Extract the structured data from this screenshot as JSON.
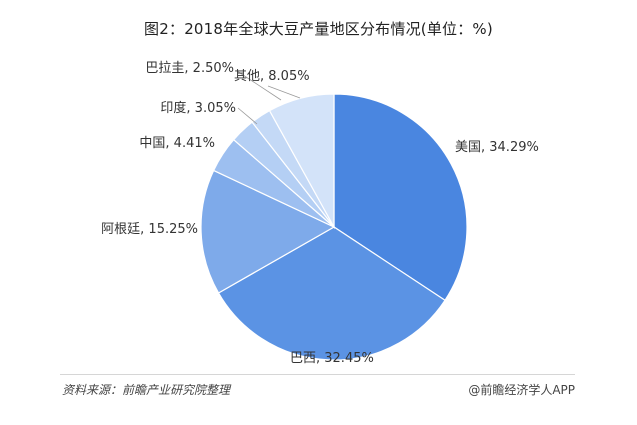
{
  "chart_data": {
    "type": "pie",
    "title": "图2：2018年全球大豆产量地区分布情况(单位：%)",
    "slices": [
      {
        "label": "美国",
        "value": 34.29,
        "display": "美国, 34.29%",
        "color": "#4a86e0"
      },
      {
        "label": "巴西",
        "value": 32.45,
        "display": "巴西, 32.45%",
        "color": "#5b93e4"
      },
      {
        "label": "阿根廷",
        "value": 15.25,
        "display": "阿根廷, 15.25%",
        "color": "#7eaaea"
      },
      {
        "label": "中国",
        "value": 4.41,
        "display": "中国, 4.41%",
        "color": "#9dbff0"
      },
      {
        "label": "印度",
        "value": 3.05,
        "display": "印度, 3.05%",
        "color": "#b4cff4"
      },
      {
        "label": "巴拉圭",
        "value": 2.5,
        "display": "巴拉圭, 2.50%",
        "color": "#c4d9f6"
      },
      {
        "label": "其他",
        "value": 8.05,
        "display": "其他, 8.05%",
        "color": "#d3e3f9"
      }
    ]
  },
  "footer": {
    "source": "资料来源：前瞻产业研究院整理",
    "credit": "@前瞻经济学人APP"
  }
}
